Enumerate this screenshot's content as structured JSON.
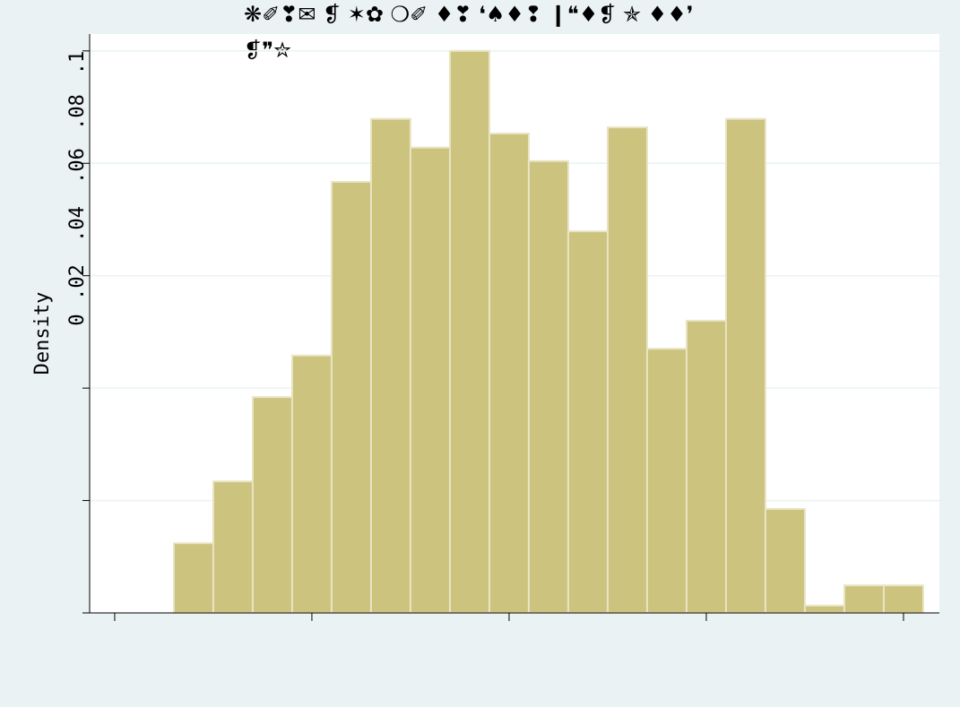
{
  "chart_data": {
    "type": "histogram",
    "title": [
      "❋✐❣✉ ❡ ✶✿ ❍✐ ♦❣ ❛♠♦❢ ❙❝♦❡ ✯ ♦♦❜",
      "❡❞✮"
    ],
    "ylabel": "Density",
    "bins": [
      0.3,
      0.5,
      0.7,
      0.9,
      1.1,
      1.3,
      1.5,
      1.7,
      1.9,
      2.1,
      2.3,
      2.5,
      2.7,
      2.9,
      3.1,
      3.3,
      3.5,
      3.7,
      3.9,
      4.1
    ],
    "values": [
      0.0124,
      0.0234,
      0.0384,
      0.0458,
      0.0767,
      0.0879,
      0.0828,
      0.1,
      0.0853,
      0.0804,
      0.0679,
      0.0864,
      0.047,
      0.052,
      0.0879,
      0.0185,
      0.0013,
      0.0049,
      0.0049
    ],
    "color": "#ccc37f",
    "xlim": [
      -0.127,
      4.182
    ],
    "xticks": [
      0,
      1,
      2,
      3,
      4
    ],
    "ylim": [
      0,
      0.103
    ],
    "yticks": [
      0,
      {
        "value": 0.02,
        "label": ".02"
      },
      {
        "value": 0.04,
        "label": ".04"
      },
      {
        "value": 0.06,
        "label": ".06"
      },
      {
        "value": 0.08,
        "label": ".08"
      },
      {
        "value": 0.1,
        "label": ".1"
      }
    ],
    "grid": true
  }
}
